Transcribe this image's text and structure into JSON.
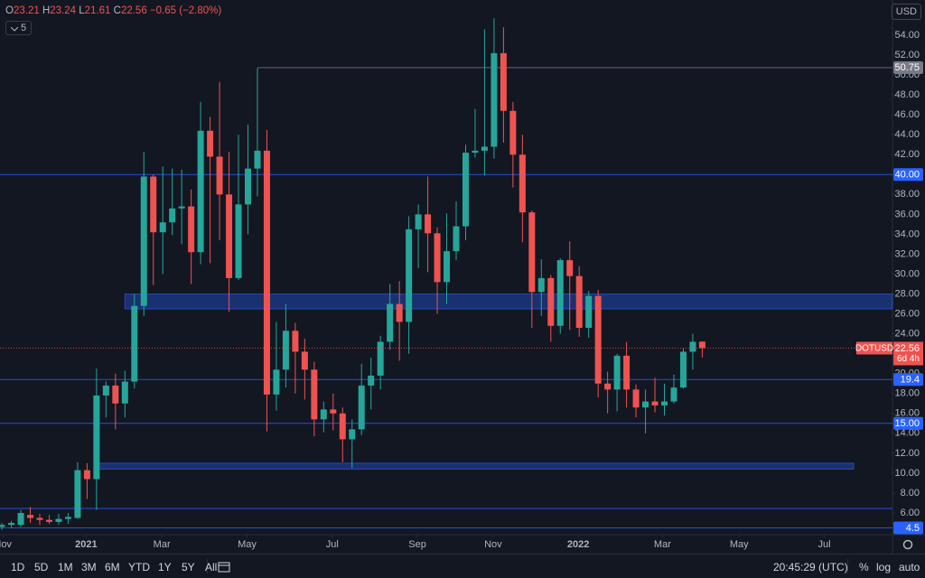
{
  "chart_data": {
    "type": "candlestick",
    "symbol": "DOTUSD",
    "currency": "USD",
    "open": [
      4.6,
      4.8,
      4.8,
      5.8,
      5.5,
      5.3,
      5.1,
      5.4,
      5.5,
      10.3,
      9.4,
      17.8,
      18.8,
      17.0,
      19.2,
      26.8,
      39.8,
      34.2,
      35.2,
      36.6,
      36.8,
      32.2,
      44.4,
      41.8,
      38.0,
      29.6,
      37.0,
      40.6,
      42.4,
      17.9,
      20.4,
      24.3,
      22.2,
      20.4,
      15.4,
      16.4,
      16.0,
      13.4,
      14.4,
      18.8,
      19.8,
      23.2,
      27.0,
      25.2,
      34.5,
      36.0,
      34.1,
      29.2,
      32.3,
      34.8,
      42.2,
      42.4,
      42.8,
      52.2,
      46.4,
      42.0,
      36.2,
      28.2,
      29.6,
      24.8,
      31.4,
      29.8,
      24.6,
      27.8,
      19.0,
      18.4,
      21.8,
      18.4,
      16.6,
      17.2,
      16.8,
      17.2,
      18.6,
      22.2,
      23.21
    ],
    "high": [
      5.0,
      5.2,
      6.3,
      6.6,
      5.9,
      5.8,
      5.9,
      6.0,
      11.1,
      11.0,
      20.5,
      19.2,
      20.0,
      20.3,
      28.0,
      42.3,
      40.0,
      40.8,
      40.6,
      40.5,
      38.5,
      47.3,
      45.8,
      49.3,
      42.3,
      44.0,
      45.0,
      50.7,
      44.5,
      25.2,
      27.0,
      25.1,
      23.5,
      21.2,
      17.2,
      18.0,
      16.6,
      15.4,
      21.0,
      21.6,
      23.8,
      29.0,
      29.3,
      35.8,
      37.0,
      39.8,
      34.7,
      36.1,
      37.3,
      43.0,
      46.6,
      54.6,
      55.7,
      54.8,
      47.3,
      44.0,
      36.4,
      31.5,
      29.9,
      31.6,
      33.3,
      30.8,
      28.3,
      28.4,
      20.2,
      22.0,
      23.2,
      18.9,
      18.4,
      19.6,
      19.0,
      19.9,
      22.6,
      24.0,
      23.24
    ],
    "low": [
      4.3,
      4.5,
      4.6,
      5.0,
      4.8,
      4.9,
      4.8,
      4.9,
      5.4,
      7.4,
      6.3,
      15.6,
      14.4,
      15.6,
      18.5,
      25.8,
      28.9,
      30.0,
      33.9,
      33.0,
      29.0,
      31.0,
      31.1,
      33.4,
      26.2,
      29.4,
      34.0,
      37.8,
      14.2,
      16.3,
      18.6,
      18.0,
      17.4,
      13.7,
      14.1,
      14.3,
      11.1,
      10.5,
      13.8,
      16.4,
      18.4,
      22.4,
      21.3,
      22.0,
      30.6,
      30.2,
      26.0,
      27.0,
      31.4,
      33.4,
      41.7,
      39.9,
      41.6,
      43.2,
      38.7,
      33.2,
      24.6,
      25.8,
      23.2,
      24.0,
      24.4,
      23.7,
      23.6,
      17.6,
      16.0,
      16.2,
      16.6,
      15.6,
      14.0,
      16.1,
      15.8,
      17.0,
      18.5,
      20.4,
      21.61
    ],
    "close": [
      4.8,
      5.0,
      6.0,
      5.5,
      5.3,
      5.1,
      5.4,
      5.6,
      10.3,
      9.4,
      17.8,
      18.8,
      17.0,
      19.2,
      26.8,
      39.8,
      34.2,
      35.2,
      36.6,
      36.8,
      32.2,
      44.4,
      41.8,
      38.0,
      29.6,
      37.0,
      40.6,
      42.4,
      17.9,
      20.4,
      24.3,
      22.2,
      20.4,
      15.4,
      16.4,
      16.0,
      13.4,
      14.4,
      18.8,
      19.8,
      23.2,
      27.0,
      25.2,
      34.5,
      36.0,
      34.1,
      29.2,
      32.3,
      34.8,
      42.2,
      42.4,
      42.8,
      52.2,
      46.4,
      42.0,
      36.2,
      28.2,
      29.6,
      24.8,
      31.4,
      29.8,
      24.6,
      27.8,
      19.0,
      18.4,
      21.8,
      18.4,
      16.6,
      17.2,
      16.8,
      17.2,
      18.6,
      22.2,
      23.2,
      22.56
    ],
    "up_color": "#26a69a",
    "down_color": "#ef5350",
    "ylim": [
      3.82,
      57.54
    ],
    "yticks": [
      {
        "value": 6,
        "label": "6.00"
      },
      {
        "value": 8,
        "label": "8.00"
      },
      {
        "value": 10,
        "label": "10.00"
      },
      {
        "value": 12,
        "label": "12.00"
      },
      {
        "value": 14,
        "label": "14.00"
      },
      {
        "value": 16,
        "label": "16.00"
      },
      {
        "value": 18,
        "label": "18.00"
      },
      {
        "value": 20,
        "label": "20.00"
      },
      {
        "value": 22,
        "label": "22.00"
      },
      {
        "value": 24,
        "label": "24.00"
      },
      {
        "value": 26,
        "label": "26.00"
      },
      {
        "value": 28,
        "label": "28.00"
      },
      {
        "value": 30,
        "label": "30.00"
      },
      {
        "value": 32,
        "label": "32.00"
      },
      {
        "value": 34,
        "label": "34.00"
      },
      {
        "value": 36,
        "label": "36.00"
      },
      {
        "value": 38,
        "label": "38.00"
      },
      {
        "value": 40,
        "label": "40.00"
      },
      {
        "value": 42,
        "label": "42.00"
      },
      {
        "value": 44,
        "label": "44.00"
      },
      {
        "value": 46,
        "label": "46.00"
      },
      {
        "value": 48,
        "label": "48.00"
      },
      {
        "value": 50,
        "label": "50.00"
      },
      {
        "value": 52,
        "label": "52.00"
      },
      {
        "value": 54,
        "label": "54.00"
      }
    ],
    "xlim": [
      -0.2,
      94.1
    ],
    "xticks": [
      {
        "value": 0.1,
        "label": "Nov"
      },
      {
        "value": 8.9,
        "label": "2021"
      },
      {
        "value": 16.9,
        "label": "Mar"
      },
      {
        "value": 25.9,
        "label": "May"
      },
      {
        "value": 34.9,
        "label": "Jul"
      },
      {
        "value": 43.9,
        "label": "Sep"
      },
      {
        "value": 51.9,
        "label": "Nov"
      },
      {
        "value": 60.9,
        "label": "2022"
      },
      {
        "value": 69.8,
        "label": "Mar"
      },
      {
        "value": 77.9,
        "label": "May"
      },
      {
        "value": 86.9,
        "label": "Jul"
      }
    ],
    "grid": false,
    "legend": {
      "prefixes": [
        "O",
        "H",
        "L",
        "C"
      ],
      "change": "−0.65 (−2.80%)",
      "indicators": "5"
    },
    "countdown": "6d 4h",
    "levels": [
      {
        "price": 50.75,
        "start": 27.0,
        "color": "#787b86",
        "tag": true
      },
      {
        "price": {
          "value": 40,
          "label": "40.00"
        },
        "start": -0.2,
        "color": "#2962ff",
        "tag": true
      },
      {
        "price": 19.4,
        "label": "19.40",
        "start": -0.2,
        "color": "#2962ff",
        "tag": true
      },
      {
        "price": {
          "value": 15,
          "label": "15.00"
        },
        "start": -0.2,
        "color": "#2962ff",
        "tag": true
      },
      {
        "price": 6.45,
        "start": -0.2,
        "color": "#2962ff",
        "tag": false
      },
      {
        "price": 4.5,
        "start": -0.2,
        "color": "#2962ff",
        "tag": true
      }
    ],
    "zones": [
      {
        "from": 26.5,
        "to": 28.0,
        "start": 13.0,
        "end": 94.1,
        "color": "#2962ff"
      },
      {
        "from": 10.4,
        "to": 11.0,
        "start": 10.1,
        "end": 90.0,
        "color": "#2962ff"
      }
    ]
  },
  "toolbar": {
    "ranges": [
      "1D",
      "5D",
      "1M",
      "3M",
      "6M",
      "YTD",
      "1Y",
      "5Y",
      "All"
    ],
    "clock": "20:45:29 (UTC)",
    "percent": "%",
    "log": "log",
    "auto": "auto"
  }
}
